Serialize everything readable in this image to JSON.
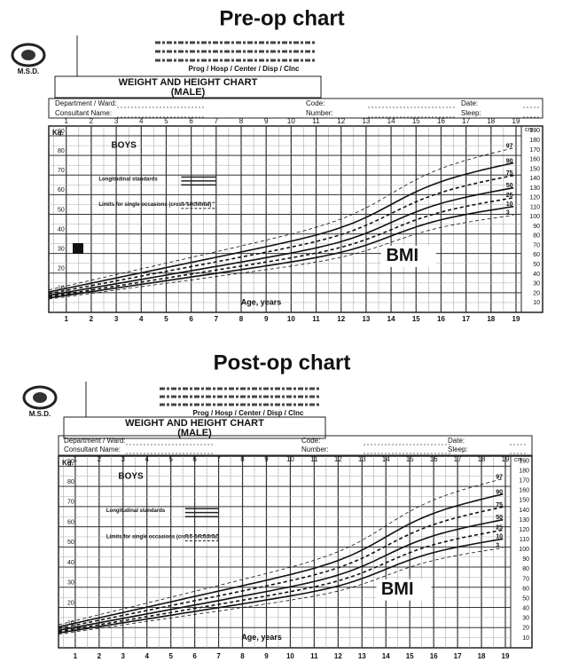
{
  "panels": [
    {
      "heading": "Pre-op chart",
      "org": "M.S.D.",
      "header_line": "Prog / Hosp / Center / Disp / Clnc",
      "chart_title": "WEIGHT AND HEIGHT CHART",
      "chart_subtitle": "(MALE)",
      "fields": [
        "Department / Ward:",
        "Code:",
        "Date:",
        "Consultant Name:",
        "Number:",
        "Sleep:"
      ],
      "left_unit": "Kg.",
      "right_unit": "cm.",
      "sex_label": "BOYS",
      "legend": [
        "Longitudinal standards",
        "Limits for single occasions (cross-sectional)"
      ],
      "x_label": "Age, years",
      "annotation": "BMI",
      "ages": [
        1,
        2,
        3,
        4,
        5,
        6,
        7,
        8,
        9,
        10,
        11,
        12,
        13,
        14,
        15,
        16,
        17,
        18,
        19
      ],
      "kg": [
        10,
        20,
        30,
        40,
        50,
        60,
        70,
        80,
        90
      ],
      "cm": [
        10,
        20,
        30,
        40,
        50,
        60,
        70,
        80,
        90,
        100,
        110,
        120,
        130,
        140,
        150,
        160,
        170,
        180,
        190
      ],
      "percentiles": [
        "97",
        "90",
        "75",
        "50",
        "25",
        "10",
        "3"
      ]
    },
    {
      "heading": "Post-op chart",
      "org": "M.S.D.",
      "header_line": "Prog / Hosp / Center / Disp / Clnc",
      "chart_title": "WEIGHT AND HEIGHT CHART",
      "chart_subtitle": "(MALE)",
      "fields": [
        "Department / Ward:",
        "Code:",
        "Date:",
        "Consultant Name:",
        "Number:",
        "Sleep:"
      ],
      "left_unit": "Kg.",
      "right_unit": "cm.",
      "sex_label": "BOYS",
      "legend": [
        "Longitudinal standards",
        "Limits for single occasions (cross-sectional)"
      ],
      "x_label": "Age, years",
      "annotation": "BMI",
      "ages": [
        1,
        2,
        3,
        4,
        5,
        6,
        7,
        8,
        9,
        10,
        11,
        12,
        13,
        14,
        15,
        16,
        17,
        18,
        19
      ],
      "kg": [
        10,
        20,
        30,
        40,
        50,
        60,
        70,
        80,
        90
      ],
      "cm": [
        10,
        20,
        30,
        40,
        50,
        60,
        70,
        80,
        90,
        100,
        110,
        120,
        130,
        140,
        150,
        160,
        170,
        180,
        190
      ],
      "percentiles": [
        "97",
        "90",
        "75",
        "50",
        "25",
        "10",
        "3"
      ]
    }
  ]
}
